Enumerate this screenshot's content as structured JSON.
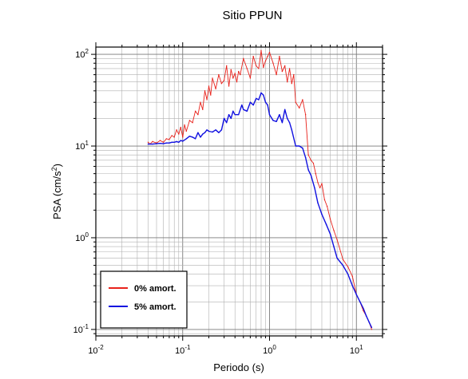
{
  "chart_data": {
    "type": "line",
    "title": "Sitio PPUN",
    "xlabel": "Periodo (s)",
    "ylabel_main": "PSA (cm/s",
    "ylabel_sup": "2",
    "ylabel_tail": ")",
    "x_scale": "log",
    "y_scale": "log",
    "xlim": [
      0.01,
      20
    ],
    "ylim": [
      0.085,
      120
    ],
    "grid": true,
    "legend_position": "bottom-left",
    "x_ticks": [
      {
        "base": "10",
        "exp": "-2",
        "value": 0.01
      },
      {
        "base": "10",
        "exp": "-1",
        "value": 0.1
      },
      {
        "base": "10",
        "exp": "0",
        "value": 1
      },
      {
        "base": "10",
        "exp": "1",
        "value": 10
      }
    ],
    "y_ticks": [
      {
        "base": "10",
        "exp": "-1",
        "value": 0.1
      },
      {
        "base": "10",
        "exp": "0",
        "value": 1
      },
      {
        "base": "10",
        "exp": "1",
        "value": 10
      },
      {
        "base": "10",
        "exp": "2",
        "value": 100
      }
    ],
    "series": [
      {
        "name": "0% amort.",
        "color": "#e8221b",
        "x": [
          0.04,
          0.042,
          0.045,
          0.05,
          0.055,
          0.06,
          0.065,
          0.07,
          0.075,
          0.08,
          0.085,
          0.09,
          0.095,
          0.1,
          0.105,
          0.11,
          0.12,
          0.13,
          0.14,
          0.15,
          0.16,
          0.17,
          0.18,
          0.19,
          0.2,
          0.21,
          0.22,
          0.24,
          0.26,
          0.28,
          0.3,
          0.32,
          0.34,
          0.36,
          0.38,
          0.4,
          0.42,
          0.44,
          0.46,
          0.5,
          0.55,
          0.6,
          0.65,
          0.7,
          0.75,
          0.8,
          0.85,
          0.9,
          0.95,
          1.0,
          1.1,
          1.2,
          1.3,
          1.4,
          1.5,
          1.6,
          1.7,
          1.8,
          1.9,
          2.0,
          2.2,
          2.4,
          2.6,
          2.8,
          3.0,
          3.2,
          3.4,
          3.6,
          3.8,
          4.0,
          4.3,
          4.6,
          5.0,
          5.5,
          6.0,
          7.0,
          8.0,
          9.0,
          10.0,
          11.0,
          12.0,
          13.0,
          14.0,
          15.0
        ],
        "y": [
          11.0,
          10.5,
          11.2,
          10.8,
          11.5,
          11.0,
          12.0,
          11.8,
          13.0,
          12.5,
          15.0,
          13.5,
          16.0,
          12.5,
          17.0,
          14.5,
          19.0,
          18.0,
          24.0,
          22.0,
          30.0,
          25.0,
          40.0,
          32.0,
          45.0,
          36.0,
          55.0,
          42.0,
          60.0,
          48.0,
          52.0,
          75.0,
          45.0,
          68.0,
          55.0,
          62.0,
          50.0,
          65.0,
          60.0,
          90.0,
          70.0,
          55.0,
          95.0,
          75.0,
          70.0,
          110.0,
          72.0,
          85.0,
          95.0,
          105.0,
          80.0,
          60.0,
          95.0,
          65.0,
          75.0,
          50.0,
          70.0,
          48.0,
          60.0,
          30.0,
          26.0,
          32.0,
          22.0,
          8.0,
          7.0,
          6.5,
          5.0,
          4.0,
          3.5,
          3.9,
          2.6,
          2.2,
          1.6,
          1.2,
          0.95,
          0.58,
          0.48,
          0.38,
          0.24,
          0.2,
          0.16,
          0.14,
          0.12,
          0.1
        ]
      },
      {
        "name": "5% amort.",
        "color": "#1010e0",
        "x": [
          0.04,
          0.045,
          0.05,
          0.055,
          0.06,
          0.065,
          0.07,
          0.075,
          0.08,
          0.085,
          0.09,
          0.095,
          0.1,
          0.11,
          0.12,
          0.13,
          0.14,
          0.15,
          0.16,
          0.17,
          0.18,
          0.19,
          0.2,
          0.22,
          0.24,
          0.26,
          0.28,
          0.3,
          0.32,
          0.34,
          0.36,
          0.38,
          0.4,
          0.44,
          0.48,
          0.5,
          0.55,
          0.6,
          0.65,
          0.7,
          0.75,
          0.8,
          0.85,
          0.9,
          0.95,
          1.0,
          1.1,
          1.2,
          1.3,
          1.4,
          1.5,
          1.6,
          1.7,
          1.8,
          2.0,
          2.2,
          2.4,
          2.6,
          2.8,
          3.0,
          3.3,
          3.6,
          4.0,
          4.5,
          5.0,
          5.5,
          6.0,
          7.0,
          8.0,
          9.0,
          10.0,
          11.0,
          12.0,
          13.0,
          14.0,
          15.0
        ],
        "y": [
          10.5,
          10.5,
          10.6,
          10.7,
          10.6,
          10.8,
          10.8,
          11.0,
          11.0,
          11.2,
          11.0,
          11.5,
          11.3,
          12.0,
          12.8,
          12.5,
          12.0,
          14.0,
          12.5,
          13.5,
          14.0,
          15.0,
          14.5,
          14.2,
          15.0,
          14.0,
          15.0,
          20.0,
          18.0,
          22.0,
          20.0,
          24.0,
          22.0,
          22.0,
          28.0,
          25.0,
          24.0,
          30.0,
          28.0,
          33.0,
          32.0,
          38.0,
          36.0,
          30.0,
          28.0,
          22.0,
          19.0,
          18.5,
          22.0,
          18.0,
          25.0,
          20.0,
          18.0,
          15.0,
          10.0,
          10.0,
          9.5,
          7.5,
          5.5,
          4.8,
          3.5,
          2.4,
          1.8,
          1.4,
          1.1,
          0.8,
          0.6,
          0.5,
          0.4,
          0.3,
          0.24,
          0.2,
          0.17,
          0.14,
          0.12,
          0.105
        ]
      }
    ]
  }
}
